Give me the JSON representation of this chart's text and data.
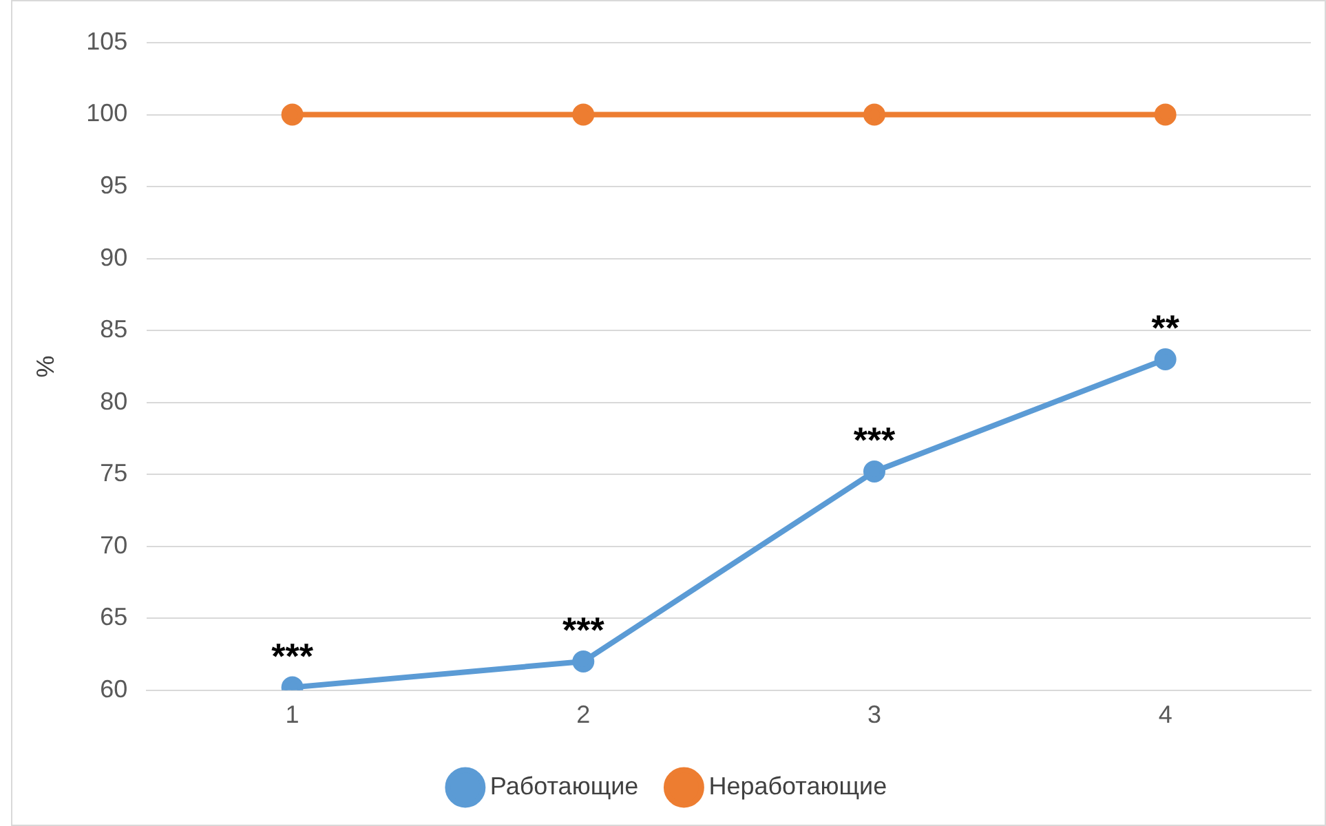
{
  "chart_data": {
    "type": "line",
    "ylabel": "%",
    "categories": [
      "1",
      "2",
      "3",
      "4"
    ],
    "series": [
      {
        "name": "Работающие",
        "color": "#5b9bd5",
        "values": [
          60.2,
          62,
          75.2,
          83
        ]
      },
      {
        "name": "Неработающие",
        "color": "#ed7d31",
        "values": [
          100,
          100,
          100,
          100
        ]
      }
    ],
    "ylim": [
      60,
      105
    ],
    "yticks": [
      60,
      65,
      70,
      75,
      80,
      85,
      90,
      95,
      100,
      105
    ],
    "grid": "y",
    "legend": "bottom",
    "marker": "circle",
    "line_style": "solid",
    "annotations": [
      {
        "text": "***",
        "x": "1",
        "y": 60.2
      },
      {
        "text": "***",
        "x": "2",
        "y": 62
      },
      {
        "text": "***",
        "x": "3",
        "y": 75.2
      },
      {
        "text": "**",
        "x": "4",
        "y": 83
      }
    ]
  }
}
